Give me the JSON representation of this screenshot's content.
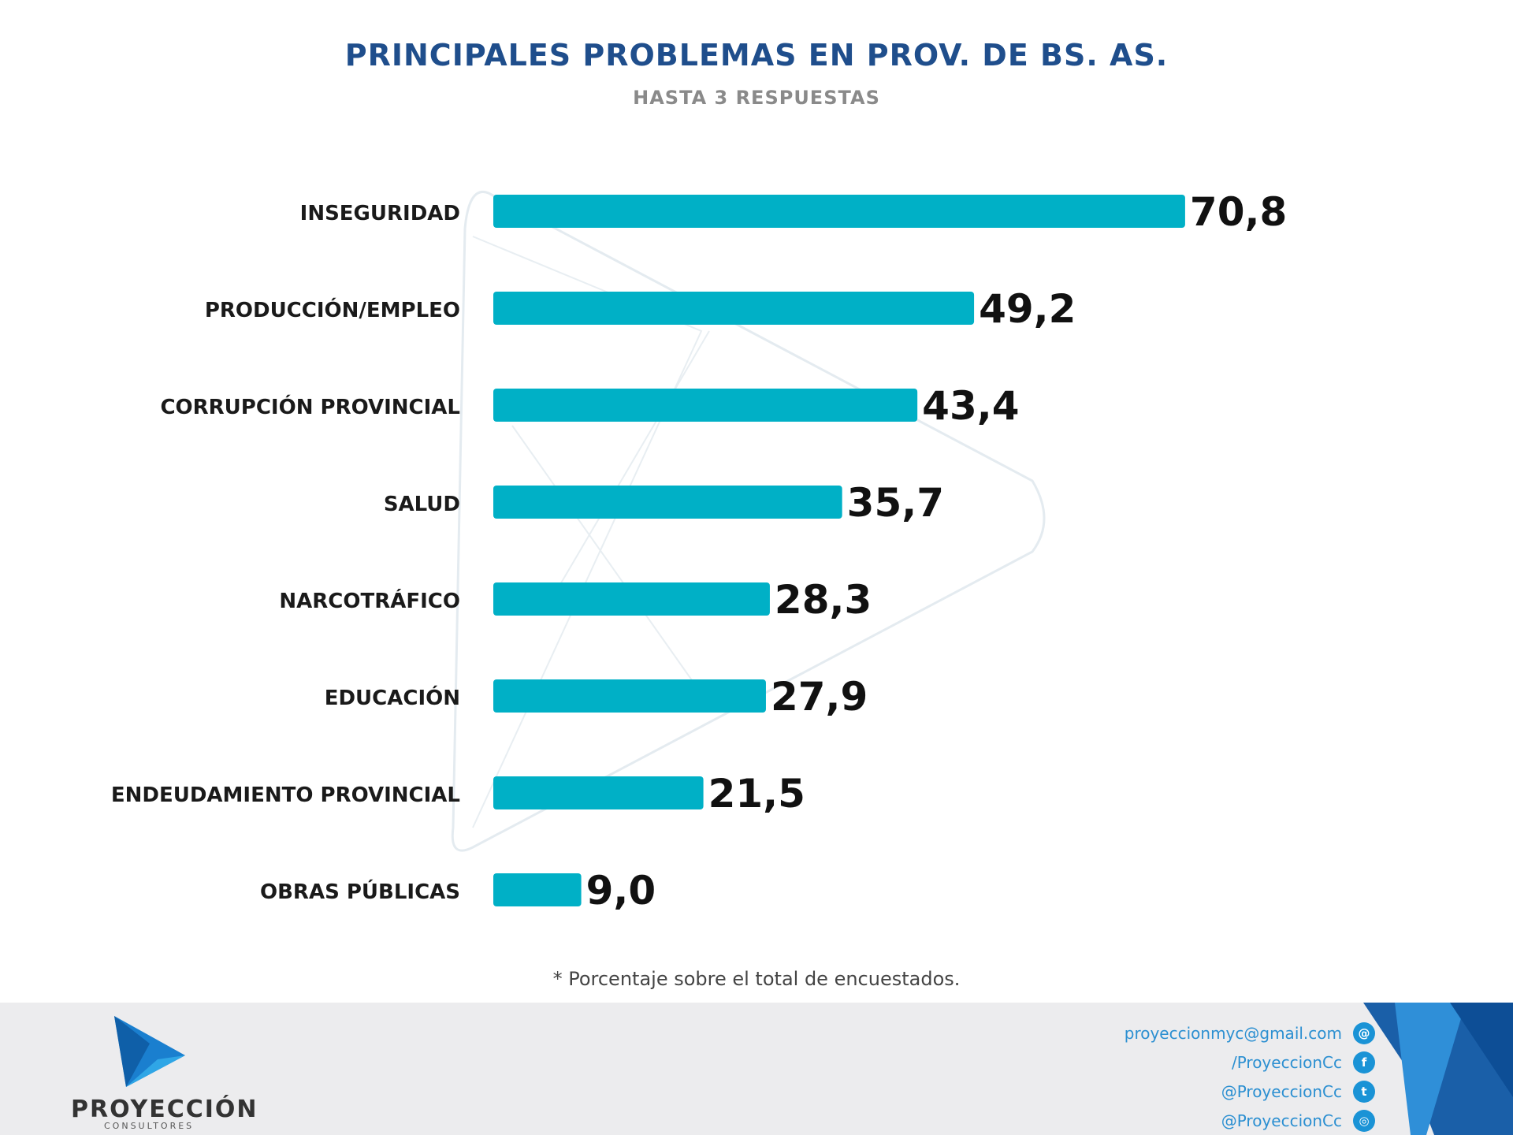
{
  "title": "PRINCIPALES PROBLEMAS EN PROV. DE BS. AS.",
  "subtitle": "HASTA 3 RESPUESTAS",
  "footnote": "* Porcentaje sobre el total de encuestados.",
  "colors": {
    "bar": "#00b0c6",
    "title": "#1f4e8c",
    "subtitle": "#8a8a8a",
    "footer_bg": "#ececee",
    "accent_blue": "#1a93d6"
  },
  "chart_data": {
    "type": "bar",
    "orientation": "horizontal",
    "title": "PRINCIPALES PROBLEMAS EN PROV. DE BS. AS.",
    "subtitle": "HASTA 3 RESPUESTAS",
    "categories": [
      "INSEGURIDAD",
      "PRODUCCIÓN/EMPLEO",
      "CORRUPCIÓN PROVINCIAL",
      "SALUD",
      "NARCOTRÁFICO",
      "EDUCACIÓN",
      "ENDEUDAMIENTO PROVINCIAL",
      "OBRAS PÚBLICAS"
    ],
    "values": [
      70.8,
      49.2,
      43.4,
      35.7,
      28.3,
      27.9,
      21.5,
      9.0
    ],
    "value_labels": [
      "70,8",
      "49,2",
      "43,4",
      "35,7",
      "28,3",
      "27,9",
      "21,5",
      "9,0"
    ],
    "xlim": [
      0,
      100
    ],
    "grid": false,
    "legend": "none"
  },
  "footer": {
    "brand": "PROYECCIÓN",
    "brand_sub": "CONSULTORES",
    "contacts": [
      {
        "text": "proyeccionmyc@gmail.com",
        "icon": "email-icon",
        "glyph": "@"
      },
      {
        "text": "/ProyeccionCc",
        "icon": "facebook-icon",
        "glyph": "f"
      },
      {
        "text": "@ProyeccionCc",
        "icon": "twitter-icon",
        "glyph": "t"
      },
      {
        "text": "@ProyeccionCc",
        "icon": "instagram-icon",
        "glyph": "◎"
      }
    ]
  }
}
